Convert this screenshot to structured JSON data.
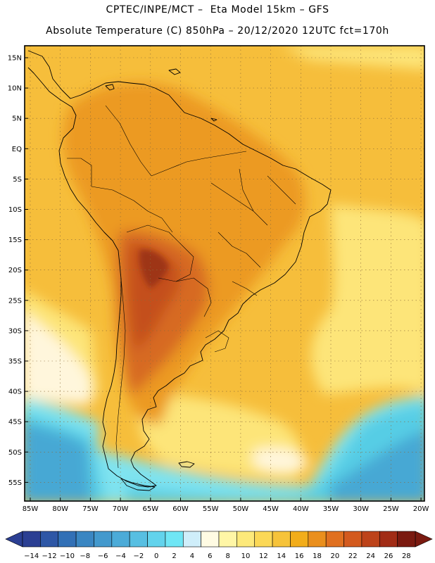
{
  "header": {
    "line1": "CPTEC/INPE/MCT –  Eta Model 15km – GFS",
    "line2": "Absolute Temperature (C) 850hPa – 20/12/2020 12UTC fct=170h"
  },
  "axes": {
    "lat_labels": [
      "15N",
      "10N",
      "5N",
      "EQ",
      "5S",
      "10S",
      "15S",
      "20S",
      "25S",
      "30S",
      "35S",
      "40S",
      "45S",
      "50S",
      "55S"
    ],
    "lon_labels": [
      "85W",
      "80W",
      "75W",
      "70W",
      "65W",
      "60W",
      "55W",
      "50W",
      "45W",
      "40W",
      "35W",
      "30W",
      "25W",
      "20W"
    ]
  },
  "colorbar": {
    "labels": [
      "-14",
      "-12",
      "-10",
      "-8",
      "-6",
      "-4",
      "-2",
      "0",
      "2",
      "4",
      "6",
      "8",
      "10",
      "12",
      "14",
      "16",
      "18",
      "20",
      "22",
      "24",
      "26",
      "28"
    ],
    "colors": [
      "#2b3f93",
      "#2e57a6",
      "#3270b6",
      "#3a86c2",
      "#4399cd",
      "#4cabd8",
      "#57bfe2",
      "#62d3ec",
      "#6fe6f5",
      "#cfeefa",
      "#fffbe3",
      "#fff6a6",
      "#fde97a",
      "#fbd856",
      "#f6c33a",
      "#f2ad1a",
      "#ea8f1d",
      "#e07020",
      "#d35a1e",
      "#bd431a",
      "#a12c16",
      "#7a1a10"
    ],
    "low_color": "#2b3f93",
    "high_color": "#7a1a10"
  },
  "palette": {
    "ocean_warm": "#f6be3b",
    "land_mid": "#ec9a24",
    "land_hot": "#d76a22",
    "land_hotter": "#c4501d",
    "land_hottest": "#9e3417",
    "pale_yellow": "#fde579",
    "cream": "#fff6dc",
    "cyan_light": "#7fe3f0",
    "cyan": "#57cde5",
    "blue": "#47a8d4",
    "frame": "#000000"
  }
}
